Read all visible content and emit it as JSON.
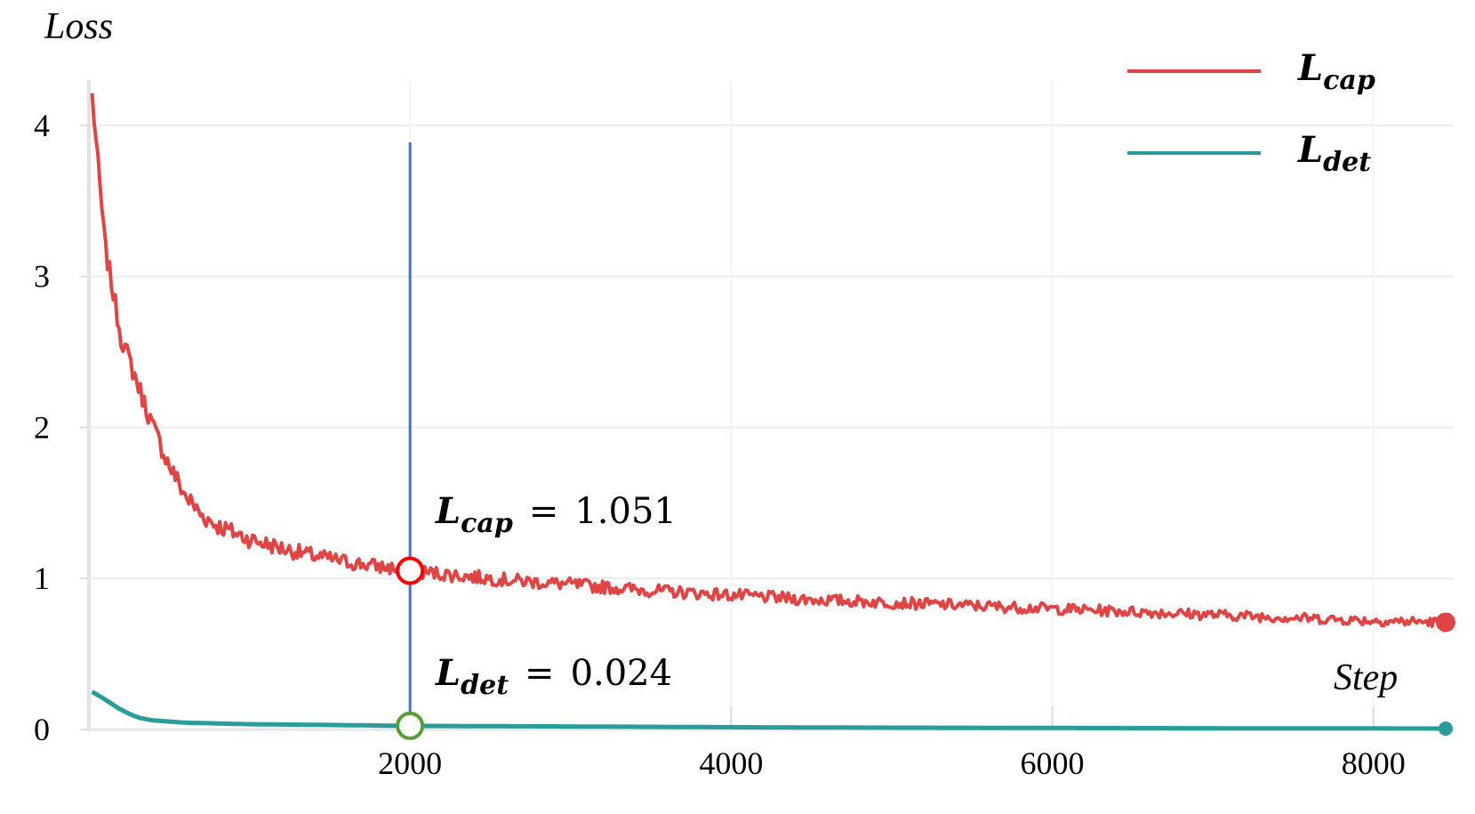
{
  "chart_data": {
    "type": "line",
    "xlabel": "Step",
    "ylabel": "Loss",
    "xlim": [
      0,
      8500
    ],
    "ylim": [
      0,
      4.3
    ],
    "x_ticks": [
      2000,
      4000,
      6000,
      8000
    ],
    "y_ticks": [
      0,
      1,
      2,
      3,
      4
    ],
    "grid": true,
    "legend_position": "top-right",
    "series": [
      {
        "name": "L_cap",
        "legend_main": "L",
        "legend_sub": "cap",
        "color": "#e04545",
        "x": [
          20,
          100,
          200,
          300,
          400,
          500,
          600,
          700,
          800,
          1000,
          1200,
          1400,
          1600,
          1800,
          2000,
          2300,
          2600,
          3000,
          3500,
          4000,
          4500,
          5000,
          5500,
          6000,
          6500,
          7000,
          7500,
          8000,
          8450
        ],
        "values": [
          4.2,
          3.2,
          2.6,
          2.3,
          2.0,
          1.75,
          1.55,
          1.42,
          1.35,
          1.26,
          1.2,
          1.15,
          1.11,
          1.08,
          1.051,
          1.02,
          0.99,
          0.96,
          0.92,
          0.89,
          0.86,
          0.84,
          0.82,
          0.8,
          0.78,
          0.76,
          0.74,
          0.72,
          0.71
        ]
      },
      {
        "name": "L_det",
        "legend_main": "L",
        "legend_sub": "det",
        "color": "#2a9d9a",
        "x": [
          20,
          100,
          200,
          300,
          400,
          600,
          800,
          1000,
          1500,
          2000,
          3000,
          4000,
          5000,
          6000,
          7000,
          8000,
          8450
        ],
        "values": [
          0.25,
          0.2,
          0.13,
          0.08,
          0.06,
          0.045,
          0.04,
          0.035,
          0.03,
          0.024,
          0.02,
          0.015,
          0.012,
          0.01,
          0.008,
          0.007,
          0.006
        ]
      }
    ],
    "marker_step": 2000,
    "annotations": [
      {
        "series": "L_cap",
        "main": "L",
        "sub": "cap",
        "equals": "=",
        "value": "1.051",
        "y": 1.051,
        "color": "#ff0000"
      },
      {
        "series": "L_det",
        "main": "L",
        "sub": "det",
        "equals": "=",
        "value": "0.024",
        "y": 0.024,
        "color": "#5a9e3a"
      }
    ],
    "marker_line_color": "#4a6fd1",
    "grid_color": "#ececec"
  }
}
